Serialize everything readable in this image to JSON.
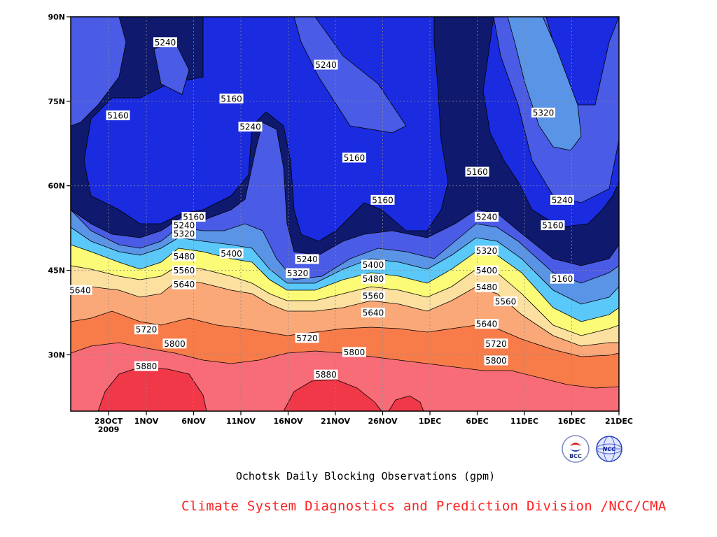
{
  "chart_data": {
    "type": "heatmap",
    "xlabel": "",
    "ylabel": "",
    "x_start": "2009-10-24",
    "x_end": "2009-12-21",
    "y_range": [
      20,
      90
    ],
    "x_ticks": [
      "28OCT",
      "1NOV",
      "6NOV",
      "11NOV",
      "16NOV",
      "21NOV",
      "26NOV",
      "1DEC",
      "6DEC",
      "11DEC",
      "16DEC",
      "21DEC"
    ],
    "x_tick_year": "2009",
    "y_ticks": [
      "30N",
      "45N",
      "60N",
      "75N",
      "90N"
    ],
    "grid": true,
    "contour_levels": [
      5160,
      5240,
      5320,
      5400,
      5480,
      5560,
      5640,
      5720,
      5800,
      5880
    ],
    "fill_colors": [
      "#0f1a6e",
      "#1a2be0",
      "#4a5be6",
      "#5a94e6",
      "#5bc8fa",
      "#a6e8a0",
      "#fbfb78",
      "#fbe0a0",
      "#fba878",
      "#f87c4a",
      "#f86c78",
      "#f03848"
    ],
    "contour_labels": [
      {
        "date": "2009-11-03",
        "lat": 85.5,
        "text": "5240"
      },
      {
        "date": "2009-10-29",
        "lat": 72.5,
        "text": "5160"
      },
      {
        "date": "2009-11-10",
        "lat": 75.5,
        "text": "5160"
      },
      {
        "date": "2009-11-12",
        "lat": 70.5,
        "text": "5240"
      },
      {
        "date": "2009-11-20",
        "lat": 81.5,
        "text": "5240"
      },
      {
        "date": "2009-11-23",
        "lat": 65.0,
        "text": "5160"
      },
      {
        "date": "2009-12-06",
        "lat": 62.5,
        "text": "5160"
      },
      {
        "date": "2009-12-13",
        "lat": 73.0,
        "text": "5320"
      },
      {
        "date": "2009-11-26",
        "lat": 57.5,
        "text": "5160"
      },
      {
        "date": "2009-12-07",
        "lat": 54.5,
        "text": "5240"
      },
      {
        "date": "2009-12-15",
        "lat": 57.5,
        "text": "5240"
      },
      {
        "date": "2009-12-14",
        "lat": 53.0,
        "text": "5160"
      },
      {
        "date": "2009-12-15",
        "lat": 43.5,
        "text": "5160"
      },
      {
        "date": "2009-11-06",
        "lat": 54.5,
        "text": "5160"
      },
      {
        "date": "2009-11-05",
        "lat": 53.0,
        "text": "5240"
      },
      {
        "date": "2009-11-05",
        "lat": 51.5,
        "text": "5320"
      },
      {
        "date": "2009-11-10",
        "lat": 48.0,
        "text": "5400"
      },
      {
        "date": "2009-11-05",
        "lat": 47.5,
        "text": "5480"
      },
      {
        "date": "2009-11-05",
        "lat": 45.0,
        "text": "5560"
      },
      {
        "date": "2009-11-05",
        "lat": 42.5,
        "text": "5640"
      },
      {
        "date": "2009-10-25",
        "lat": 41.5,
        "text": "5640"
      },
      {
        "date": "2009-11-18",
        "lat": 47.0,
        "text": "5240"
      },
      {
        "date": "2009-11-17",
        "lat": 44.5,
        "text": "5320"
      },
      {
        "date": "2009-11-25",
        "lat": 46.0,
        "text": "5400"
      },
      {
        "date": "2009-11-25",
        "lat": 43.5,
        "text": "5480"
      },
      {
        "date": "2009-11-25",
        "lat": 40.5,
        "text": "5560"
      },
      {
        "date": "2009-11-25",
        "lat": 37.5,
        "text": "5640"
      },
      {
        "date": "2009-12-07",
        "lat": 48.5,
        "text": "5320"
      },
      {
        "date": "2009-12-07",
        "lat": 45.0,
        "text": "5400"
      },
      {
        "date": "2009-12-07",
        "lat": 42.0,
        "text": "5480"
      },
      {
        "date": "2009-12-09",
        "lat": 39.5,
        "text": "5560"
      },
      {
        "date": "2009-12-07",
        "lat": 35.5,
        "text": "5640"
      },
      {
        "date": "2009-11-01",
        "lat": 34.5,
        "text": "5720"
      },
      {
        "date": "2009-11-04",
        "lat": 32.0,
        "text": "5800"
      },
      {
        "date": "2009-11-18",
        "lat": 33.0,
        "text": "5720"
      },
      {
        "date": "2009-11-23",
        "lat": 30.5,
        "text": "5800"
      },
      {
        "date": "2009-12-08",
        "lat": 32.0,
        "text": "5720"
      },
      {
        "date": "2009-12-08",
        "lat": 29.0,
        "text": "5800"
      },
      {
        "date": "2009-11-01",
        "lat": 28.0,
        "text": "5880"
      },
      {
        "date": "2009-11-20",
        "lat": 26.5,
        "text": "5880"
      }
    ]
  },
  "caption": "Ochotsk Daily Blocking Observations (gpm)",
  "credit": "Climate System Diagnostics and Prediction Division /NCC/CMA",
  "logos": {
    "bcc": {
      "text": "BCC",
      "icon": "bcc-logo-icon"
    },
    "ncc": {
      "text": "NCC",
      "icon": "ncc-logo-icon"
    }
  }
}
